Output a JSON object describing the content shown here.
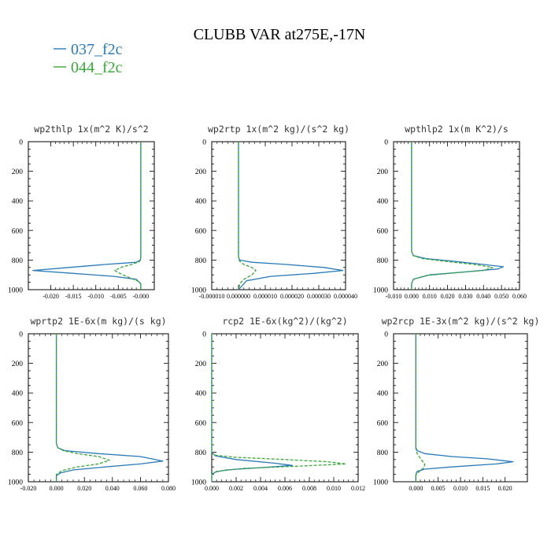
{
  "title": "CLUBB VAR at275E,-17N",
  "legend": [
    {
      "label": "037_f2c",
      "color": "#2a7ab8",
      "dash": "solid"
    },
    {
      "label": "044_f2c",
      "color": "#3aa63a",
      "dash": "dashed"
    }
  ],
  "chart_data": [
    {
      "type": "line",
      "title": "wp2thlp  1x(m^2 K)/s^2",
      "xlim": [
        -0.025,
        0.003
      ],
      "xticks": [
        -0.02,
        -0.015,
        -0.01,
        -0.005,
        0
      ],
      "xtick_labels": [
        "-0.020",
        "-0.015",
        "-0.010",
        "-0.005",
        "-0.000"
      ],
      "ylim": [
        0,
        1000
      ],
      "yticks": [
        0,
        200,
        400,
        600,
        800,
        1000
      ],
      "series": [
        {
          "name": "037_f2c",
          "x": [
            0,
            0,
            -0.0001,
            -0.001,
            -0.008,
            -0.016,
            -0.024,
            -0.015,
            -0.006,
            -0.001,
            0,
            0
          ],
          "y": [
            0,
            780,
            800,
            815,
            830,
            850,
            870,
            890,
            910,
            930,
            960,
            1000
          ]
        },
        {
          "name": "044_f2c",
          "x": [
            0,
            0,
            -0.0003,
            -0.002,
            -0.004,
            -0.0058,
            -0.004,
            -0.002,
            -0.0004,
            0,
            0
          ],
          "y": [
            0,
            790,
            810,
            830,
            845,
            870,
            900,
            925,
            945,
            965,
            1000
          ]
        }
      ]
    },
    {
      "type": "line",
      "title": "wp2rtp  1x(m^2 kg)/(s^2 kg)",
      "xlim": [
        -1e-05,
        4e-05
      ],
      "xticks": [
        -1e-05,
        0,
        1e-05,
        2e-05,
        3e-05,
        4e-05
      ],
      "xtick_labels": [
        "-0.000010",
        "0.000000",
        "0.000010",
        "0.000020",
        "0.000030",
        "0.000040"
      ],
      "ylim": [
        0,
        1000
      ],
      "yticks": [
        0,
        200,
        400,
        600,
        800,
        1000
      ],
      "series": [
        {
          "name": "037_f2c",
          "x": [
            0,
            0,
            5e-07,
            5e-06,
            1.8e-05,
            3.2e-05,
            3.9e-05,
            2.8e-05,
            1.2e-05,
            3e-06,
            0
          ],
          "y": [
            0,
            780,
            800,
            815,
            830,
            850,
            870,
            890,
            910,
            940,
            1000
          ]
        },
        {
          "name": "044_f2c",
          "x": [
            0,
            0,
            3e-07,
            2e-06,
            5e-06,
            6.5e-06,
            5e-06,
            2e-06,
            5e-07,
            0
          ],
          "y": [
            0,
            780,
            805,
            830,
            850,
            870,
            900,
            930,
            960,
            1000
          ]
        }
      ]
    },
    {
      "type": "line",
      "title": "wpthlp2  1x(m K^2)/s",
      "xlim": [
        -0.01,
        0.06
      ],
      "xticks": [
        -0.01,
        0,
        0.01,
        0.02,
        0.03,
        0.04,
        0.05,
        0.06
      ],
      "xtick_labels": [
        "-0.010",
        "0.000",
        "0.010",
        "0.020",
        "0.030",
        "0.040",
        "0.050",
        "0.060"
      ],
      "ylim": [
        0,
        1000
      ],
      "yticks": [
        0,
        200,
        400,
        600,
        800,
        1000
      ],
      "series": [
        {
          "name": "037_f2c",
          "x": [
            0,
            0,
            0.001,
            0.008,
            0.025,
            0.04,
            0.051,
            0.048,
            0.03,
            0.01,
            0.001,
            0,
            0
          ],
          "y": [
            0,
            740,
            770,
            790,
            810,
            830,
            845,
            860,
            880,
            900,
            930,
            960,
            1000
          ]
        },
        {
          "name": "044_f2c",
          "x": [
            0,
            0,
            0.001,
            0.006,
            0.02,
            0.035,
            0.045,
            0.04,
            0.025,
            0.008,
            0.001,
            0,
            0
          ],
          "y": [
            0,
            740,
            770,
            790,
            810,
            830,
            850,
            870,
            885,
            905,
            930,
            960,
            1000
          ]
        }
      ]
    },
    {
      "type": "line",
      "title": "wprtp2  1E-6x(m kg)/(s kg)",
      "xlim": [
        -0.02,
        0.08
      ],
      "xticks": [
        -0.02,
        0,
        0.02,
        0.04,
        0.06,
        0.08
      ],
      "xtick_labels": [
        "-0.020",
        "0.000",
        "0.020",
        "0.040",
        "0.060",
        "0.080"
      ],
      "ylim": [
        0,
        1000
      ],
      "yticks": [
        0,
        200,
        400,
        600,
        800,
        1000
      ],
      "series": [
        {
          "name": "037_f2c",
          "x": [
            0,
            0,
            0.001,
            0.006,
            0.03,
            0.06,
            0.076,
            0.06,
            0.035,
            0.012,
            0.003,
            0,
            0
          ],
          "y": [
            0,
            740,
            770,
            790,
            810,
            830,
            860,
            880,
            900,
            920,
            940,
            960,
            1000
          ]
        },
        {
          "name": "044_f2c",
          "x": [
            0,
            0,
            0.001,
            0.005,
            0.015,
            0.03,
            0.038,
            0.03,
            0.015,
            0.004,
            0,
            0
          ],
          "y": [
            0,
            740,
            770,
            790,
            810,
            830,
            855,
            880,
            900,
            925,
            950,
            1000
          ]
        }
      ]
    },
    {
      "type": "line",
      "title": "rcp2  1E-6x(kg^2)/(kg^2)",
      "xlim": [
        0,
        0.012
      ],
      "xticks": [
        0,
        0.002,
        0.004,
        0.006,
        0.008,
        0.01,
        0.012
      ],
      "xtick_labels": [
        "0.000",
        "0.002",
        "0.004",
        "0.006",
        "0.008",
        "0.010",
        "0.012"
      ],
      "ylim": [
        0,
        1000
      ],
      "yticks": [
        0,
        200,
        400,
        600,
        800,
        1000
      ],
      "series": [
        {
          "name": "037_f2c",
          "x": [
            0,
            0,
            0.0003,
            0.002,
            0.0052,
            0.0066,
            0.004,
            0.0012,
            0.0003,
            0,
            0
          ],
          "y": [
            0,
            800,
            825,
            850,
            875,
            890,
            905,
            920,
            935,
            950,
            1000
          ]
        },
        {
          "name": "044_f2c",
          "x": [
            0,
            0,
            0.0002,
            0.002,
            0.006,
            0.0095,
            0.011,
            0.007,
            0.0025,
            0.0004,
            0,
            0
          ],
          "y": [
            0,
            800,
            820,
            835,
            850,
            865,
            880,
            895,
            910,
            930,
            950,
            1000
          ]
        }
      ]
    },
    {
      "type": "line",
      "title": "wp2rcp  1E-3x(m^2 kg)/(s^2 kg)",
      "xlim": [
        -0.005,
        0.025
      ],
      "xticks": [
        0,
        0.005,
        0.01,
        0.015,
        0.02
      ],
      "xtick_labels": [
        "0.000",
        "0.005",
        "0.010",
        "0.015",
        "0.020"
      ],
      "ylim": [
        0,
        1000
      ],
      "yticks": [
        0,
        200,
        400,
        600,
        800,
        1000
      ],
      "series": [
        {
          "name": "037_f2c",
          "x": [
            0,
            0,
            0.0003,
            0.002,
            0.008,
            0.016,
            0.0218,
            0.018,
            0.008,
            0.002,
            0.0003,
            0,
            0
          ],
          "y": [
            0,
            770,
            790,
            810,
            830,
            845,
            865,
            880,
            900,
            915,
            930,
            950,
            1000
          ]
        },
        {
          "name": "044_f2c",
          "x": [
            0,
            0,
            0.0003,
            0.0012,
            0.002,
            0.0018,
            0.001,
            0.0002,
            0,
            0
          ],
          "y": [
            0,
            780,
            810,
            850,
            880,
            905,
            925,
            945,
            960,
            1000
          ]
        }
      ]
    }
  ]
}
